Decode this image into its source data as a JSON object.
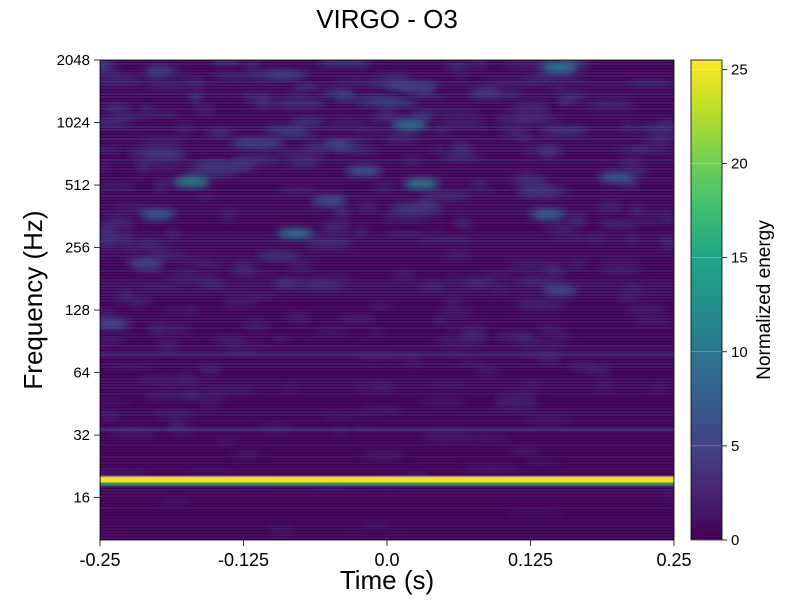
{
  "chart_data": {
    "type": "heatmap",
    "title": "VIRGO - O3",
    "xlabel": "Time (s)",
    "ylabel": "Frequency (Hz)",
    "xlim": [
      -0.25,
      0.25
    ],
    "ylim": [
      10,
      2048
    ],
    "yscale": "log2",
    "x_ticks": [
      -0.25,
      -0.125,
      0.0,
      0.125,
      0.25
    ],
    "x_tick_labels": [
      "-0.25",
      "-0.125",
      "0.0",
      "0.125",
      "0.25"
    ],
    "y_ticks": [
      16,
      32,
      64,
      128,
      256,
      512,
      1024,
      2048
    ],
    "y_tick_labels": [
      "16",
      "32",
      "64",
      "128",
      "256",
      "512",
      "1024",
      "2048"
    ],
    "colormap": "viridis",
    "colorbar": {
      "label": "Normalized energy",
      "range": [
        0,
        25.5
      ],
      "ticks": [
        0,
        5,
        10,
        15,
        20,
        25
      ],
      "tick_labels": [
        "0",
        "5",
        "10",
        "15",
        "20",
        "25"
      ]
    },
    "features": [
      {
        "kind": "horizontal-band",
        "frequency": 19.5,
        "energy": 25
      },
      {
        "kind": "horizontal-band",
        "frequency": 18.5,
        "energy": 12
      },
      {
        "kind": "horizontal-band",
        "frequency": 34,
        "energy": 4
      },
      {
        "kind": "horizontal-band",
        "frequency": 78,
        "energy": 3
      },
      {
        "kind": "blob",
        "time": -0.17,
        "frequency": 530,
        "energy": 12
      },
      {
        "kind": "blob",
        "time": -0.08,
        "frequency": 300,
        "energy": 10
      },
      {
        "kind": "blob",
        "time": 0.03,
        "frequency": 520,
        "energy": 11
      },
      {
        "kind": "blob",
        "time": 0.02,
        "frequency": 1000,
        "energy": 10
      },
      {
        "kind": "blob",
        "time": 0.14,
        "frequency": 370,
        "energy": 9
      },
      {
        "kind": "blob",
        "time": 0.15,
        "frequency": 1900,
        "energy": 11
      },
      {
        "kind": "blob",
        "time": -0.2,
        "frequency": 370,
        "energy": 8
      },
      {
        "kind": "blob",
        "time": -0.24,
        "frequency": 110,
        "energy": 6
      },
      {
        "kind": "blob",
        "time": -0.21,
        "frequency": 215,
        "energy": 6
      },
      {
        "kind": "blob",
        "time": 0.15,
        "frequency": 160,
        "energy": 6
      },
      {
        "kind": "blob",
        "time": 0.2,
        "frequency": 560,
        "energy": 8
      },
      {
        "kind": "blob",
        "time": -0.05,
        "frequency": 430,
        "energy": 7
      },
      {
        "kind": "blob",
        "time": -0.02,
        "frequency": 600,
        "energy": 7
      }
    ]
  }
}
